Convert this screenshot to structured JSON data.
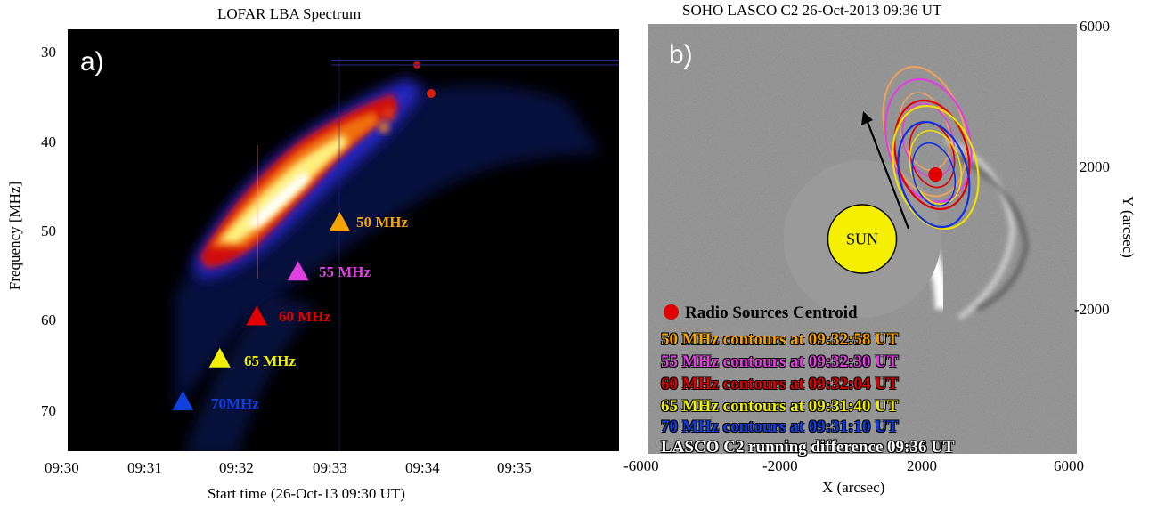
{
  "chart_data": [
    {
      "panel": "a)",
      "type": "heatmap",
      "title": "LOFAR LBA Spectrum",
      "xlabel": "Start time (26-Oct-13 09:30 UT)",
      "ylabel": "Frequency [MHz]",
      "xticks": [
        "09:30",
        "09:31",
        "09:32",
        "09:33",
        "09:34",
        "09:35"
      ],
      "yticks": [
        "30",
        "40",
        "50",
        "60",
        "70"
      ],
      "ylim": [
        75,
        27
      ],
      "markers": [
        {
          "label": "50 MHz",
          "time_min": 2.95,
          "freq": 49,
          "color": "#f5a300"
        },
        {
          "label": "55 MHz",
          "time_min": 2.5,
          "freq": 54.5,
          "color": "#e040e0"
        },
        {
          "label": "60 MHz",
          "time_min": 2.05,
          "freq": 59.5,
          "color": "#e00000"
        },
        {
          "label": "65 MHz",
          "time_min": 1.65,
          "freq": 64.2,
          "color": "#f0f000"
        },
        {
          "label": "70MHz",
          "time_min": 1.25,
          "freq": 69,
          "color": "#1040e0"
        }
      ]
    },
    {
      "panel": "b)",
      "type": "scatter",
      "title": "SOHO LASCO C2 26-Oct-2013 09:36 UT",
      "xlabel": "X (arcsec)",
      "ylabel": "Y (arcsec)",
      "xticks": [
        "-6000",
        "-2000",
        "2000",
        "6000"
      ],
      "yticks": [
        "6000",
        "2000",
        "-2000"
      ],
      "xlim": [
        -6000,
        6000
      ],
      "ylim": [
        -6000,
        6000
      ],
      "sun_label": "SUN",
      "centroid": {
        "x": 2050,
        "y": 1800
      },
      "contours": [
        {
          "freq": "50 MHz",
          "color": "#e8a060",
          "cx": 1750,
          "cy": 3000,
          "rx": 1100,
          "ry": 1850
        },
        {
          "freq": "55 MHz",
          "color": "#e040e0",
          "cx": 1850,
          "cy": 2750,
          "rx": 1150,
          "ry": 1750
        },
        {
          "freq": "60 MHz",
          "color": "#e00000",
          "cx": 1950,
          "cy": 2350,
          "rx": 1000,
          "ry": 1550
        },
        {
          "freq": "65 MHz",
          "color": "#f0e000",
          "cx": 2050,
          "cy": 2000,
          "rx": 1150,
          "ry": 1750
        },
        {
          "freq": "70 MHz",
          "color": "#1030e0",
          "cx": 2000,
          "cy": 1800,
          "rx": 950,
          "ry": 1500
        }
      ]
    }
  ],
  "legend": [
    {
      "text": "Radio Sources Centroid",
      "color": "#000000"
    },
    {
      "text": "50 MHz contours at 09:32:58 UT",
      "color": "#f5a300"
    },
    {
      "text": "55 MHz contours at 09:32:30 UT",
      "color": "#e040e0"
    },
    {
      "text": "60 MHz contours at 09:32:04 UT",
      "color": "#e00000"
    },
    {
      "text": "65 MHz contours at 09:31:40 UT",
      "color": "#f0f000"
    },
    {
      "text": "70 MHz contours at 09:31:10 UT",
      "color": "#1040e0"
    },
    {
      "text": "LASCO C2 running difference 09:36 UT",
      "color": "#ffffff"
    }
  ]
}
